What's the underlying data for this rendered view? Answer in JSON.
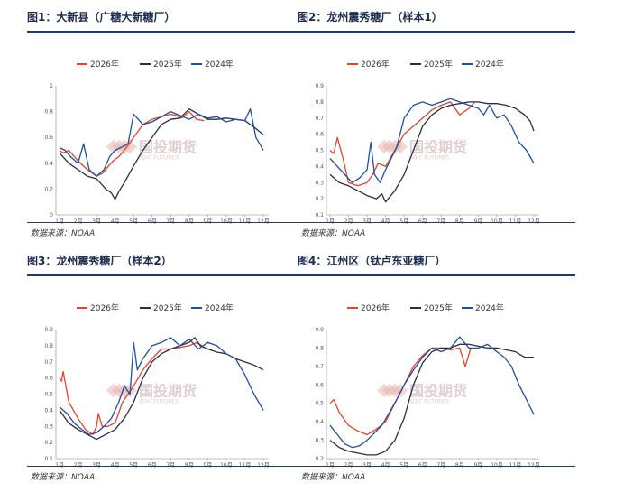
{
  "colors": {
    "s2026": "#e8422c",
    "s2025": "#2a2d45",
    "s2024": "#1f4f9e",
    "rule": "#1f3b6e"
  },
  "watermark": {
    "name": "国投期货",
    "sub": "SDIC FUTURES"
  },
  "chart_data": [
    {
      "type": "line",
      "title": "图1：大新县（广糖大新糖厂）",
      "source": "数据来源：NOAA",
      "legend": [
        "2026年",
        "2025年",
        "2024年"
      ],
      "ylim": [
        0,
        1
      ],
      "yticks": [
        "0",
        "0.2",
        "0.4",
        "0.6",
        "0.8",
        "1"
      ],
      "yvals": [
        0,
        0.2,
        0.4,
        0.6,
        0.8,
        1
      ],
      "xticks": [
        "1月",
        "2月",
        "3月",
        "4月",
        "5月",
        "6月",
        "7月",
        "8月",
        "9月",
        "10月",
        "11月",
        "12月"
      ],
      "series": [
        {
          "name": "2026年",
          "key": "s2026",
          "x": [
            1,
            1.2,
            1.5,
            2,
            2.5,
            3,
            3.3,
            3.6,
            3.9,
            4.2,
            4.5,
            5,
            5.5,
            6,
            6.5,
            7,
            7.3,
            7.6,
            8,
            8.4,
            8.8
          ],
          "y": [
            0.5,
            0.48,
            0.5,
            0.42,
            0.35,
            0.3,
            0.32,
            0.37,
            0.42,
            0.45,
            0.5,
            0.6,
            0.7,
            0.74,
            0.76,
            0.78,
            0.77,
            0.75,
            0.8,
            0.74,
            0.73
          ]
        },
        {
          "name": "2025年",
          "key": "s2025",
          "x": [
            1,
            1.5,
            2,
            2.5,
            3,
            3.5,
            3.8,
            4,
            4.2,
            4.5,
            5,
            5.5,
            6,
            6.5,
            7,
            7.5,
            8,
            8.5,
            9,
            9.5,
            10,
            10.5,
            11,
            11.5,
            12
          ],
          "y": [
            0.48,
            0.4,
            0.35,
            0.3,
            0.28,
            0.2,
            0.17,
            0.12,
            0.18,
            0.25,
            0.38,
            0.5,
            0.6,
            0.7,
            0.74,
            0.75,
            0.82,
            0.78,
            0.74,
            0.74,
            0.75,
            0.74,
            0.73,
            0.68,
            0.62
          ]
        },
        {
          "name": "2024年",
          "key": "s2024",
          "x": [
            1,
            1.3,
            1.6,
            2,
            2.3,
            2.6,
            3,
            3.4,
            3.7,
            4,
            4.3,
            4.7,
            5,
            5.5,
            6,
            6.5,
            7,
            7.5,
            8,
            8.5,
            9,
            9.5,
            10,
            10.5,
            11,
            11.3,
            11.6,
            11.8,
            12
          ],
          "y": [
            0.52,
            0.5,
            0.45,
            0.4,
            0.55,
            0.35,
            0.3,
            0.35,
            0.45,
            0.5,
            0.52,
            0.55,
            0.78,
            0.7,
            0.72,
            0.76,
            0.8,
            0.77,
            0.74,
            0.78,
            0.75,
            0.76,
            0.72,
            0.74,
            0.73,
            0.82,
            0.6,
            0.55,
            0.5
          ]
        }
      ]
    },
    {
      "type": "line",
      "title": "图2：龙州震秀糖厂（样本1）",
      "source": "数据来源：NOAA",
      "legend": [
        "2026年",
        "2025年",
        "2024年"
      ],
      "ylim": [
        0.1,
        0.9
      ],
      "yticks": [
        "0.1",
        "0.2",
        "0.3",
        "0.4",
        "0.5",
        "0.6",
        "0.7",
        "0.8",
        "0.9"
      ],
      "yvals": [
        0.1,
        0.2,
        0.3,
        0.4,
        0.5,
        0.6,
        0.7,
        0.8,
        0.9
      ],
      "xticks": [
        "1月",
        "2月",
        "3月",
        "4月",
        "5月",
        "6月",
        "7月",
        "8月",
        "9月",
        "10月",
        "11月",
        "12月"
      ],
      "series": [
        {
          "name": "2026年",
          "key": "s2026",
          "x": [
            1,
            1.2,
            1.4,
            1.7,
            2,
            2.5,
            3,
            3.3,
            3.6,
            4,
            4.5,
            5,
            5.5,
            6,
            6.5,
            7,
            7.5,
            8,
            8.5,
            8.8
          ],
          "y": [
            0.5,
            0.48,
            0.58,
            0.45,
            0.3,
            0.28,
            0.3,
            0.35,
            0.42,
            0.4,
            0.5,
            0.6,
            0.65,
            0.7,
            0.75,
            0.78,
            0.8,
            0.72,
            0.76,
            0.8
          ]
        },
        {
          "name": "2025年",
          "key": "s2025",
          "x": [
            1,
            1.5,
            2,
            2.5,
            3,
            3.5,
            3.8,
            4,
            4.5,
            5,
            5.5,
            6,
            6.5,
            7,
            7.5,
            8,
            8.5,
            9,
            9.5,
            10,
            10.5,
            11,
            11.5,
            11.8,
            12
          ],
          "y": [
            0.35,
            0.3,
            0.28,
            0.25,
            0.22,
            0.2,
            0.23,
            0.18,
            0.25,
            0.35,
            0.5,
            0.65,
            0.72,
            0.76,
            0.78,
            0.79,
            0.8,
            0.8,
            0.79,
            0.79,
            0.78,
            0.76,
            0.72,
            0.68,
            0.62
          ]
        },
        {
          "name": "2024年",
          "key": "s2024",
          "x": [
            1,
            1.4,
            1.8,
            2.2,
            2.6,
            3,
            3.2,
            3.4,
            3.7,
            4,
            4.3,
            4.6,
            5,
            5.5,
            6,
            6.5,
            7,
            7.5,
            8,
            8.5,
            9,
            9.3,
            9.6,
            10,
            10.4,
            10.8,
            11.2,
            11.6,
            12
          ],
          "y": [
            0.45,
            0.4,
            0.35,
            0.3,
            0.33,
            0.38,
            0.55,
            0.35,
            0.3,
            0.38,
            0.45,
            0.52,
            0.7,
            0.78,
            0.8,
            0.78,
            0.8,
            0.82,
            0.8,
            0.78,
            0.76,
            0.72,
            0.78,
            0.7,
            0.72,
            0.65,
            0.55,
            0.5,
            0.42
          ]
        }
      ]
    },
    {
      "type": "line",
      "title": "图3：龙州震秀糖厂（样本2）",
      "source": "数据来源：NOAA",
      "legend": [
        "2026年",
        "2025年",
        "2024年"
      ],
      "ylim": [
        0.1,
        0.9
      ],
      "yticks": [
        "0.1",
        "0.2",
        "0.3",
        "0.4",
        "0.5",
        "0.6",
        "0.7",
        "0.8",
        "0.9"
      ],
      "yvals": [
        0.1,
        0.2,
        0.3,
        0.4,
        0.5,
        0.6,
        0.7,
        0.8,
        0.9
      ],
      "xticks": [
        "1月",
        "2月",
        "3月",
        "4月",
        "5月",
        "6月",
        "7月",
        "8月",
        "9月",
        "10月",
        "11月",
        "12月"
      ],
      "series": [
        {
          "name": "2026年",
          "key": "s2026",
          "x": [
            1,
            1.1,
            1.2,
            1.5,
            2,
            2.4,
            2.8,
            3,
            3.1,
            3.3,
            3.6,
            4,
            4.4,
            5,
            5.5,
            6,
            6.5,
            7,
            7.5,
            8,
            8.4,
            8.7
          ],
          "y": [
            0.6,
            0.58,
            0.64,
            0.45,
            0.35,
            0.28,
            0.25,
            0.3,
            0.38,
            0.3,
            0.3,
            0.32,
            0.45,
            0.55,
            0.65,
            0.72,
            0.78,
            0.78,
            0.79,
            0.8,
            0.82,
            0.8
          ]
        },
        {
          "name": "2025年",
          "key": "s2025",
          "x": [
            1,
            1.5,
            2,
            2.5,
            3,
            3.5,
            4,
            4.5,
            5,
            5.5,
            6,
            6.5,
            7,
            7.5,
            8,
            8.3,
            8.6,
            9,
            9.5,
            10,
            10.5,
            11,
            11.5,
            12
          ],
          "y": [
            0.4,
            0.32,
            0.28,
            0.25,
            0.22,
            0.25,
            0.28,
            0.35,
            0.45,
            0.6,
            0.7,
            0.75,
            0.78,
            0.8,
            0.82,
            0.85,
            0.8,
            0.78,
            0.76,
            0.75,
            0.72,
            0.7,
            0.68,
            0.65
          ]
        },
        {
          "name": "2024年",
          "key": "s2024",
          "x": [
            1,
            1.4,
            1.8,
            2.2,
            2.6,
            3,
            3.4,
            3.8,
            4.2,
            4.5,
            4.8,
            5,
            5.2,
            5.5,
            6,
            6.5,
            7,
            7.5,
            8,
            8.5,
            9,
            9.5,
            10,
            10.5,
            11,
            11.5,
            12
          ],
          "y": [
            0.42,
            0.38,
            0.32,
            0.28,
            0.25,
            0.26,
            0.3,
            0.35,
            0.45,
            0.55,
            0.5,
            0.82,
            0.65,
            0.72,
            0.8,
            0.82,
            0.85,
            0.8,
            0.84,
            0.78,
            0.82,
            0.8,
            0.75,
            0.72,
            0.62,
            0.5,
            0.4
          ]
        }
      ]
    },
    {
      "type": "line",
      "title": "图4：江州区（钛卢东亚糖厂）",
      "source": "数据来源：NOAA",
      "legend": [
        "2026年",
        "2025年",
        "2024年"
      ],
      "ylim": [
        0.2,
        0.9
      ],
      "yticks": [
        "0.2",
        "0.3",
        "0.4",
        "0.5",
        "0.6",
        "0.7",
        "0.8",
        "0.9"
      ],
      "yvals": [
        0.2,
        0.3,
        0.4,
        0.5,
        0.6,
        0.7,
        0.8,
        0.9
      ],
      "xticks": [
        "1月",
        "2月",
        "3月",
        "4月",
        "5月",
        "6月",
        "7月",
        "8月",
        "9月",
        "10月",
        "11月",
        "12月"
      ],
      "series": [
        {
          "name": "2026年",
          "key": "s2026",
          "x": [
            1,
            1.2,
            1.5,
            2,
            2.5,
            3,
            3.5,
            4,
            4.5,
            5,
            5.5,
            6,
            6.5,
            7,
            7.5,
            8,
            8.3,
            8.6
          ],
          "y": [
            0.5,
            0.52,
            0.45,
            0.38,
            0.35,
            0.33,
            0.36,
            0.4,
            0.5,
            0.6,
            0.7,
            0.76,
            0.8,
            0.8,
            0.79,
            0.8,
            0.7,
            0.8
          ]
        },
        {
          "name": "2025年",
          "key": "s2025",
          "x": [
            1,
            1.5,
            2,
            2.5,
            3,
            3.5,
            4,
            4.5,
            5,
            5.5,
            6,
            6.5,
            7,
            7.5,
            8,
            8.5,
            9,
            9.5,
            10,
            10.5,
            11,
            11.5,
            12
          ],
          "y": [
            0.3,
            0.26,
            0.24,
            0.23,
            0.22,
            0.22,
            0.24,
            0.3,
            0.42,
            0.6,
            0.72,
            0.78,
            0.8,
            0.8,
            0.82,
            0.82,
            0.81,
            0.8,
            0.8,
            0.79,
            0.78,
            0.75,
            0.75
          ]
        },
        {
          "name": "2024年",
          "key": "s2024",
          "x": [
            1,
            1.4,
            1.8,
            2.2,
            2.6,
            3,
            3.4,
            3.8,
            4.2,
            4.6,
            5,
            5.5,
            6,
            6.5,
            7,
            7.5,
            8,
            8.5,
            9,
            9.5,
            10,
            10.4,
            10.8,
            11.2,
            11.6,
            12
          ],
          "y": [
            0.38,
            0.33,
            0.28,
            0.26,
            0.27,
            0.3,
            0.34,
            0.38,
            0.45,
            0.52,
            0.6,
            0.68,
            0.75,
            0.8,
            0.78,
            0.8,
            0.86,
            0.8,
            0.8,
            0.82,
            0.78,
            0.75,
            0.7,
            0.6,
            0.52,
            0.44
          ]
        }
      ]
    }
  ]
}
